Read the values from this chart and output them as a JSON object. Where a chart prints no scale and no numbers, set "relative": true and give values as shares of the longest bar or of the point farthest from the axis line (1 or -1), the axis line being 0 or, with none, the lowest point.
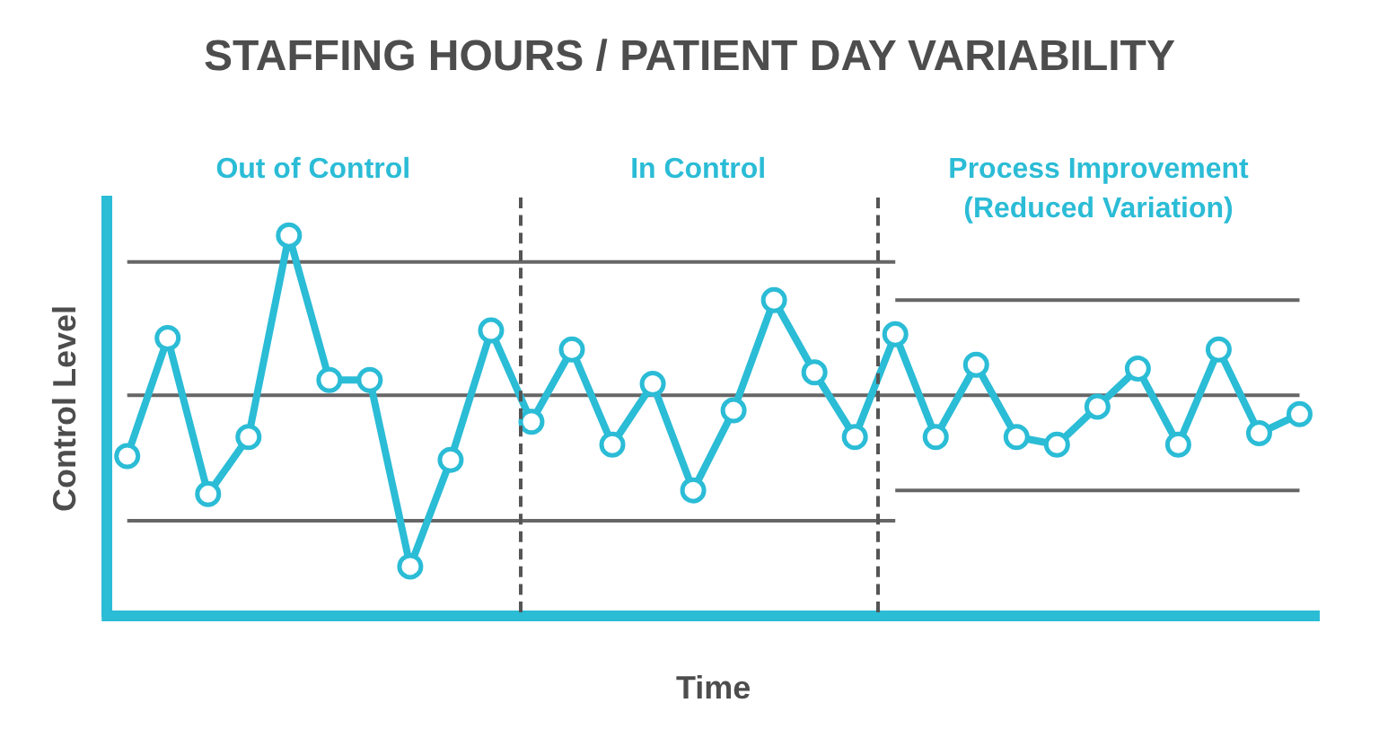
{
  "chart_data": {
    "type": "line",
    "title": "STAFFING HOURS / PATIENT DAY VARIABILITY",
    "xlabel": "Time",
    "ylabel": "Control Level",
    "relative": true,
    "categories": [
      null,
      null,
      null,
      null,
      null,
      null,
      null,
      null,
      null,
      null,
      null,
      null,
      null,
      null,
      null,
      null,
      null,
      null,
      null,
      null,
      null,
      null,
      null,
      null,
      null,
      null,
      null,
      null,
      null,
      null
    ],
    "series": [
      {
        "color": "#2bbcd6",
        "marker": "circle",
        "values": [
          0.42,
          0.73,
          0.32,
          0.47,
          1.0,
          0.62,
          0.62,
          0.13,
          0.41,
          0.75,
          0.51,
          0.7,
          0.45,
          0.61,
          0.33,
          0.54,
          0.83,
          0.64,
          0.47,
          0.74,
          0.47,
          0.66,
          0.47,
          0.45,
          0.55,
          0.65,
          0.45,
          0.7,
          0.48,
          0.53
        ]
      },
      {
        "color": "#666666",
        "marker": "none",
        "values": [
          0.93,
          0.93,
          0.93,
          0.93,
          0.93,
          0.93,
          0.93,
          0.93,
          0.93,
          0.93,
          0.93,
          0.93,
          0.93,
          0.93,
          0.93,
          0.93,
          0.93,
          0.93,
          0.93,
          0.93,
          null,
          null,
          null,
          null,
          null,
          null,
          null,
          null,
          null,
          null
        ]
      },
      {
        "color": "#666666",
        "marker": "none",
        "values": [
          0.58,
          0.58,
          0.58,
          0.58,
          0.58,
          0.58,
          0.58,
          0.58,
          0.58,
          0.58,
          0.58,
          0.58,
          0.58,
          0.58,
          0.58,
          0.58,
          0.58,
          0.58,
          0.58,
          0.58,
          0.58,
          0.58,
          0.58,
          0.58,
          0.58,
          0.58,
          0.58,
          0.58,
          0.58,
          0.58
        ]
      },
      {
        "color": "#666666",
        "marker": "none",
        "values": [
          0.25,
          0.25,
          0.25,
          0.25,
          0.25,
          0.25,
          0.25,
          0.25,
          0.25,
          0.25,
          0.25,
          0.25,
          0.25,
          0.25,
          0.25,
          0.25,
          0.25,
          0.25,
          0.25,
          0.25,
          null,
          null,
          null,
          null,
          null,
          null,
          null,
          null,
          null,
          null
        ]
      },
      {
        "color": "#666666",
        "marker": "none",
        "values": [
          null,
          null,
          null,
          null,
          null,
          null,
          null,
          null,
          null,
          null,
          null,
          null,
          null,
          null,
          null,
          null,
          null,
          null,
          null,
          0.83,
          0.83,
          0.83,
          0.83,
          0.83,
          0.83,
          0.83,
          0.83,
          0.83,
          0.83,
          0.83
        ]
      },
      {
        "color": "#666666",
        "marker": "none",
        "values": [
          null,
          null,
          null,
          null,
          null,
          null,
          null,
          null,
          null,
          null,
          null,
          null,
          null,
          null,
          null,
          null,
          null,
          null,
          null,
          0.33,
          0.33,
          0.33,
          0.33,
          0.33,
          0.33,
          0.33,
          0.33,
          0.33,
          0.33,
          0.33
        ]
      }
    ],
    "ref_lines": [
      {
        "axis": "y",
        "value": 0,
        "color": "#2bbcd6"
      }
    ],
    "annotations": [
      "Out of Control",
      "In Control",
      "Process Improvement (Reduced Variation)"
    ]
  }
}
